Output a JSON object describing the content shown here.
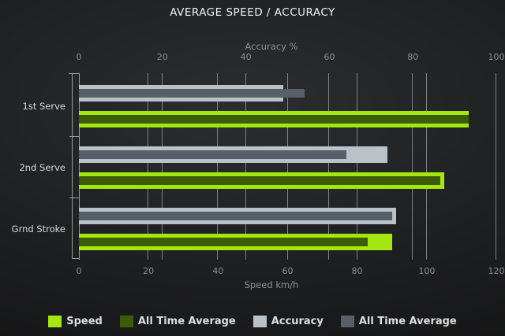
{
  "title": "AVERAGE SPEED / ACCURACY",
  "colors": {
    "background_center": "#2b2d2e",
    "background_edge": "#121213",
    "grid": "#8e9397",
    "title_text": "#f0f0f0",
    "axis_text": "#8d9092",
    "category_text": "#d6d8d9",
    "legend_text": "#dcdedf",
    "speed": "#a4e612",
    "speed_all_time_average": "#3d5c08",
    "accuracy": "#b9c2c7",
    "accuracy_all_time_average": "#575f68"
  },
  "chart_data": {
    "type": "bar",
    "orientation": "horizontal",
    "title": "AVERAGE SPEED / ACCURACY",
    "categories": [
      "1st Serve",
      "2nd Serve",
      "Grnd Stroke"
    ],
    "axes": {
      "top": {
        "label": "Accuracy %",
        "ticks": [
          0,
          20,
          40,
          60,
          80,
          100
        ],
        "min": 0,
        "max": 100
      },
      "bottom": {
        "label": "Speed km/h",
        "ticks": [
          0,
          20,
          40,
          60,
          80,
          100,
          120
        ],
        "min": 0,
        "max": 120
      }
    },
    "grid": "vertical-lines-at-ticks-of-both-axes",
    "legend_position": "bottom",
    "series": [
      {
        "name": "Speed",
        "axis": "bottom",
        "color": "#a4e612",
        "role": "outer",
        "values": [
          112,
          105,
          90
        ]
      },
      {
        "name": "All Time Average",
        "axis": "bottom",
        "color": "#3d5c08",
        "role": "overlay",
        "values": [
          112,
          104,
          83
        ]
      },
      {
        "name": "Accuracy",
        "axis": "top",
        "color": "#b9c2c7",
        "role": "outer",
        "values": [
          49,
          74,
          76
        ]
      },
      {
        "name": "All Time Average",
        "axis": "top",
        "color": "#575f68",
        "role": "overlay",
        "values": [
          54,
          64,
          75
        ]
      }
    ]
  }
}
